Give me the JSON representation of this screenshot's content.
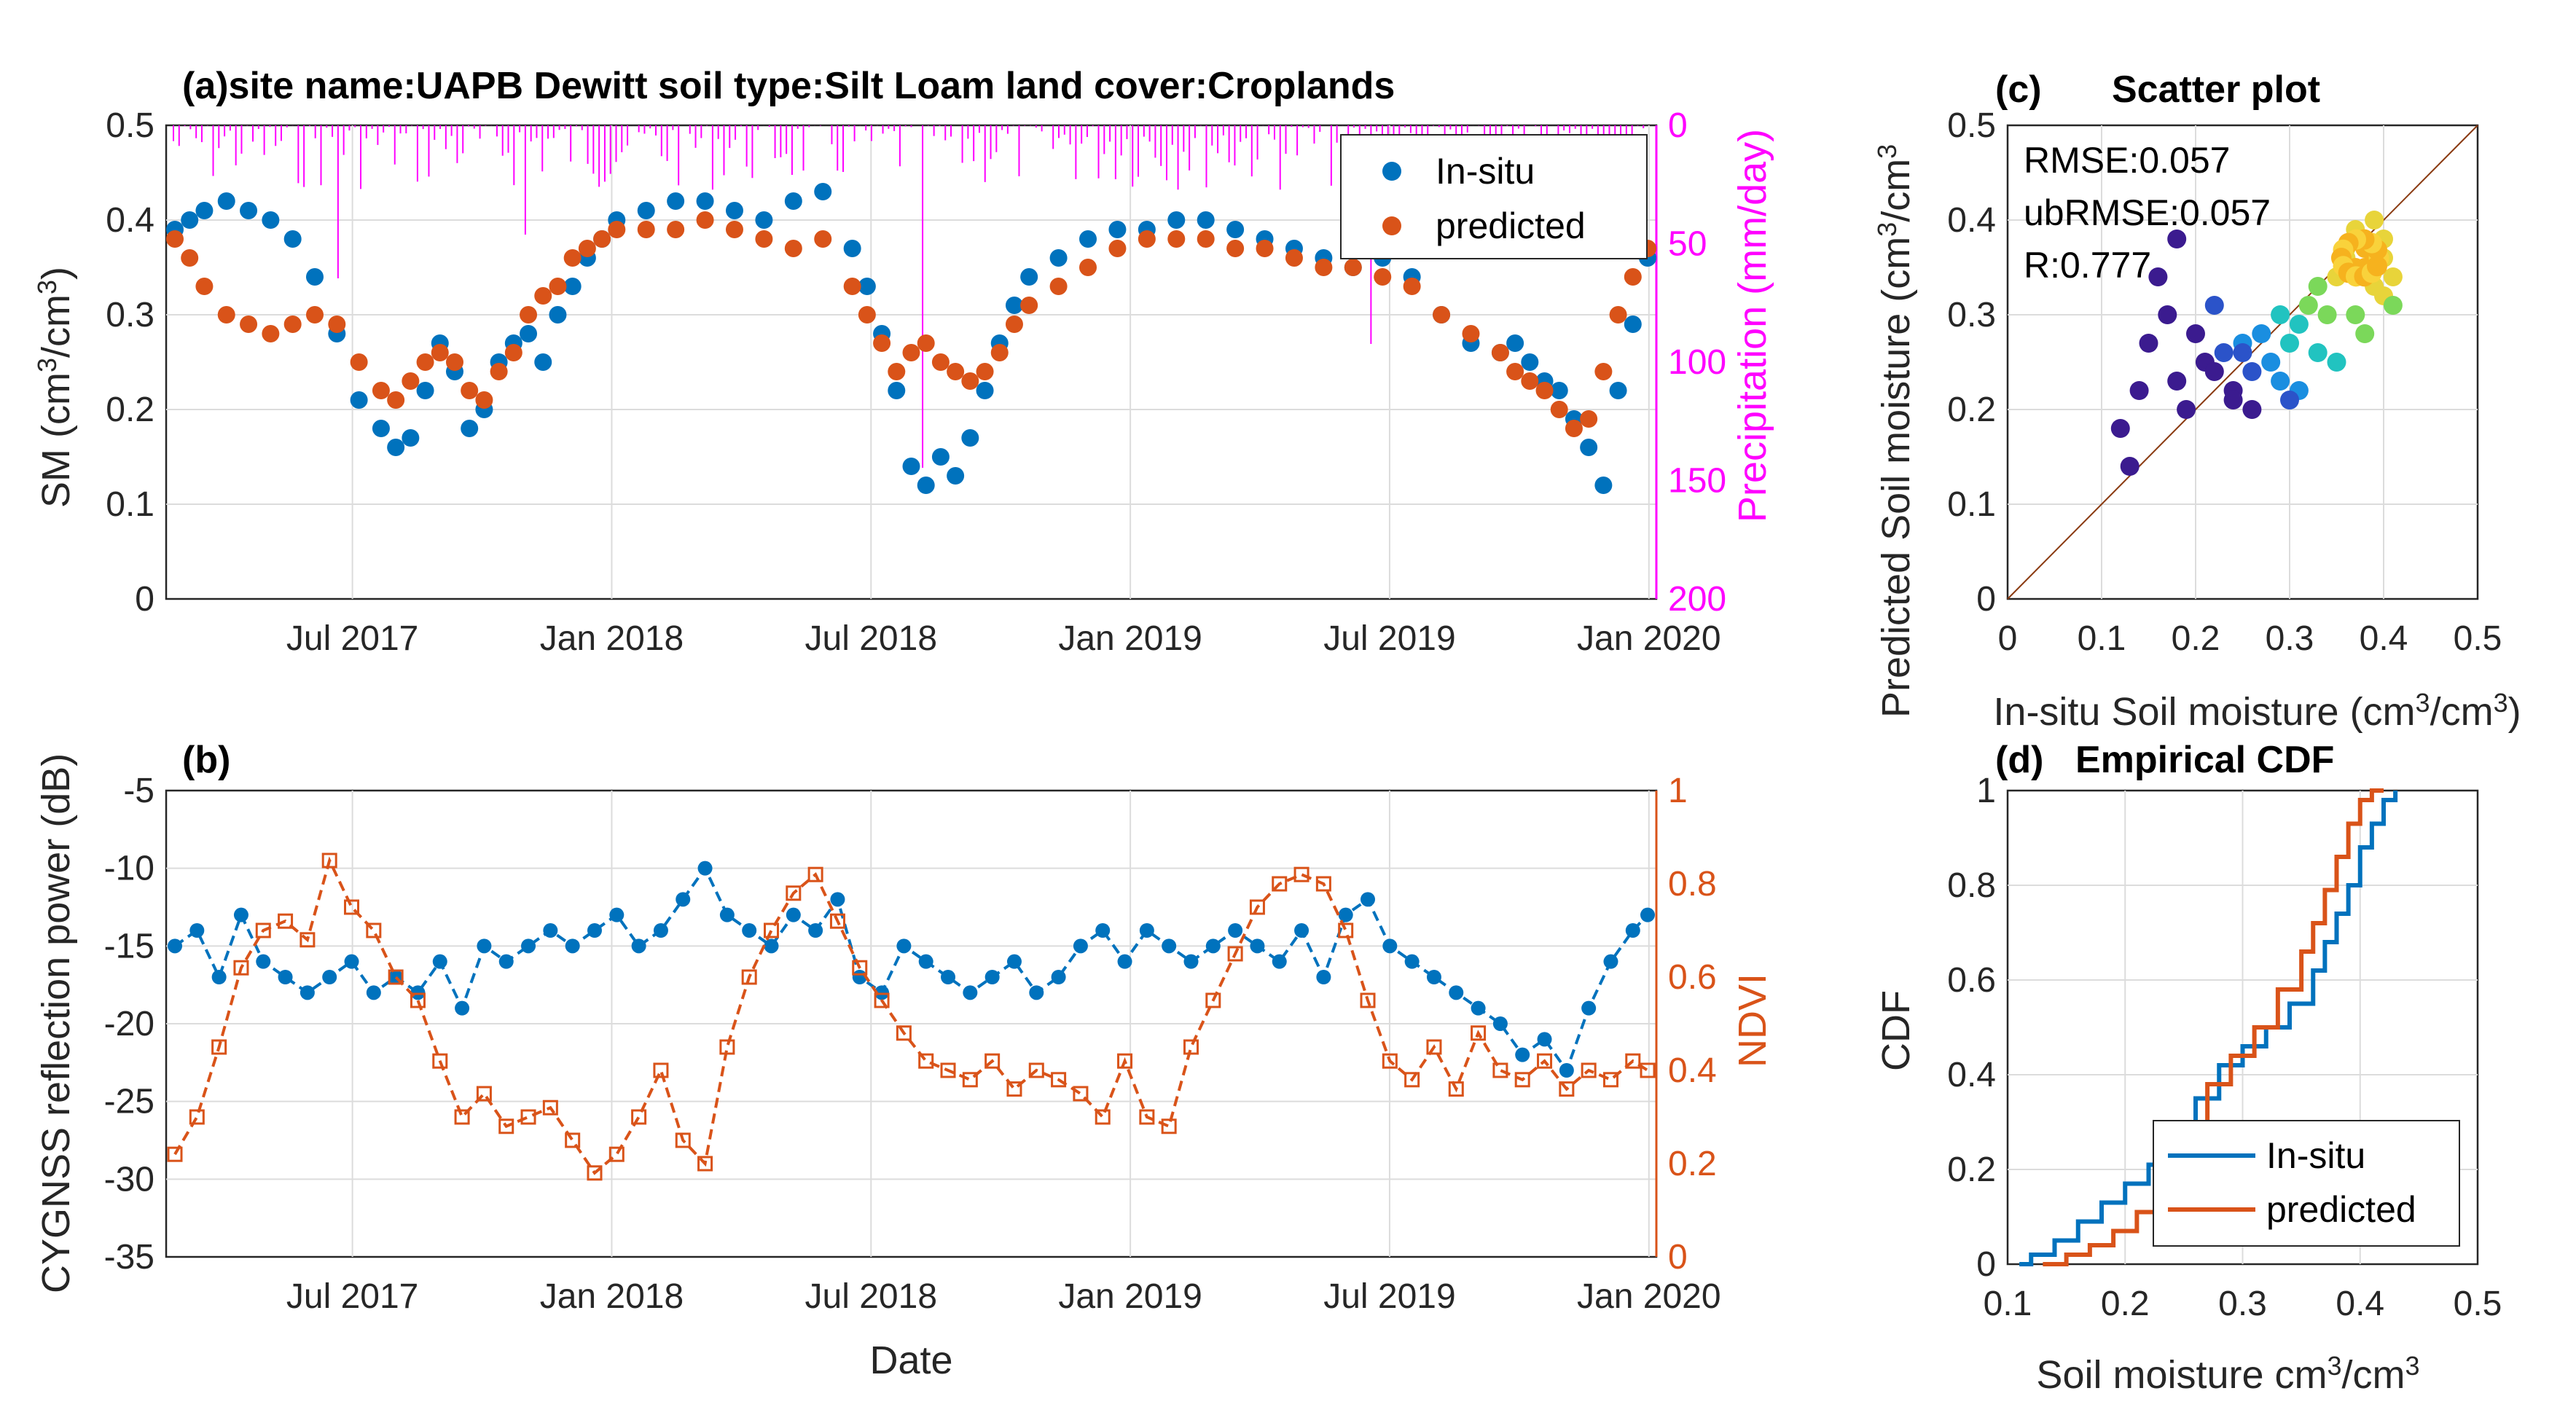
{
  "chart_data": [
    {
      "id": "a",
      "type": "scatter",
      "title": "(a)site name:UAPB Dewitt  soil type:Silt Loam  land cover:Croplands",
      "xlabel": "",
      "ylabel": "SM (cm3/cm3)",
      "ylabel_parts": [
        "SM (cm",
        "3",
        "/cm",
        "3",
        ")"
      ],
      "ylim": [
        0,
        0.5
      ],
      "yticks": [
        "0",
        "0.1",
        "0.2",
        "0.3",
        "0.4",
        "0.5"
      ],
      "y2label": "Precipitation (mm/day)",
      "y2lim": [
        0,
        200
      ],
      "y2_reversed": true,
      "y2ticks": [
        "0",
        "50",
        "100",
        "150",
        "200"
      ],
      "xticks": [
        "Jul 2017",
        "Jan 2018",
        "Jul 2018",
        "Jan 2019",
        "Jul 2019",
        "Jan 2020"
      ],
      "legend": [
        "In-situ",
        "predicted"
      ],
      "legend_position": "top-right",
      "colors": {
        "insitu": "#0072BD",
        "predicted": "#D95319",
        "precip": "#FF00FF"
      },
      "series": [
        {
          "name": "In-situ",
          "x": [
            0,
            10,
            20,
            35,
            50,
            65,
            80,
            95,
            110,
            125,
            140,
            150,
            160,
            170,
            180,
            190,
            200,
            210,
            220,
            230,
            240,
            250,
            260,
            270,
            280,
            290,
            300,
            320,
            340,
            360,
            380,
            400,
            420,
            440,
            460,
            470,
            480,
            490,
            500,
            510,
            520,
            530,
            540,
            550,
            560,
            570,
            580,
            600,
            620,
            640,
            660,
            680,
            700,
            720,
            740,
            760,
            780,
            800,
            820,
            840,
            860,
            880,
            900,
            910,
            920,
            930,
            940,
            950,
            960,
            970,
            980,
            990,
            1000
          ],
          "y": [
            0.39,
            0.4,
            0.41,
            0.42,
            0.41,
            0.4,
            0.38,
            0.34,
            0.28,
            0.21,
            0.18,
            0.16,
            0.17,
            0.22,
            0.27,
            0.24,
            0.18,
            0.2,
            0.25,
            0.27,
            0.28,
            0.25,
            0.3,
            0.33,
            0.36,
            0.38,
            0.4,
            0.41,
            0.42,
            0.42,
            0.41,
            0.4,
            0.42,
            0.43,
            0.37,
            0.33,
            0.28,
            0.22,
            0.14,
            0.12,
            0.15,
            0.13,
            0.17,
            0.22,
            0.27,
            0.31,
            0.34,
            0.36,
            0.38,
            0.39,
            0.39,
            0.4,
            0.4,
            0.39,
            0.38,
            0.37,
            0.36,
            0.35,
            0.36,
            0.34,
            0.3,
            0.27,
            0.26,
            0.27,
            0.25,
            0.23,
            0.22,
            0.19,
            0.16,
            0.12,
            0.22,
            0.29,
            0.36
          ]
        },
        {
          "name": "predicted",
          "x": [
            0,
            10,
            20,
            35,
            50,
            65,
            80,
            95,
            110,
            125,
            140,
            150,
            160,
            170,
            180,
            190,
            200,
            210,
            220,
            230,
            240,
            250,
            260,
            270,
            280,
            290,
            300,
            320,
            340,
            360,
            380,
            400,
            420,
            440,
            460,
            470,
            480,
            490,
            500,
            510,
            520,
            530,
            540,
            550,
            560,
            570,
            580,
            600,
            620,
            640,
            660,
            680,
            700,
            720,
            740,
            760,
            780,
            800,
            820,
            840,
            860,
            880,
            900,
            910,
            920,
            930,
            940,
            950,
            960,
            970,
            980,
            990,
            1000
          ],
          "y": [
            0.38,
            0.36,
            0.33,
            0.3,
            0.29,
            0.28,
            0.29,
            0.3,
            0.29,
            0.25,
            0.22,
            0.21,
            0.23,
            0.25,
            0.26,
            0.25,
            0.22,
            0.21,
            0.24,
            0.26,
            0.3,
            0.32,
            0.33,
            0.36,
            0.37,
            0.38,
            0.39,
            0.39,
            0.39,
            0.4,
            0.39,
            0.38,
            0.37,
            0.38,
            0.33,
            0.3,
            0.27,
            0.24,
            0.26,
            0.27,
            0.25,
            0.24,
            0.23,
            0.24,
            0.26,
            0.29,
            0.31,
            0.33,
            0.35,
            0.37,
            0.38,
            0.38,
            0.38,
            0.37,
            0.37,
            0.36,
            0.35,
            0.35,
            0.34,
            0.33,
            0.3,
            0.28,
            0.26,
            0.24,
            0.23,
            0.22,
            0.2,
            0.18,
            0.19,
            0.24,
            0.3,
            0.34,
            0.37
          ]
        }
      ]
    },
    {
      "id": "b",
      "type": "line",
      "title": "(b)",
      "xlabel": "Date",
      "ylabel": "CYGNSS reflection power (dB)",
      "ylim": [
        -35,
        -5
      ],
      "yticks": [
        "-35",
        "-30",
        "-25",
        "-20",
        "-15",
        "-10",
        "-5"
      ],
      "y2label": "NDVI",
      "y2lim": [
        0,
        1
      ],
      "y2ticks": [
        "0",
        "0.2",
        "0.4",
        "0.6",
        "0.8",
        "1"
      ],
      "xticks": [
        "Jul 2017",
        "Jan 2018",
        "Jul 2018",
        "Jan 2019",
        "Jul 2019",
        "Jan 2020"
      ],
      "series": [
        {
          "name": "CYGNSS reflection power",
          "x": [
            0,
            15,
            30,
            45,
            60,
            75,
            90,
            105,
            120,
            135,
            150,
            165,
            180,
            195,
            210,
            225,
            240,
            255,
            270,
            285,
            300,
            315,
            330,
            345,
            360,
            375,
            390,
            405,
            420,
            435,
            450,
            465,
            480,
            495,
            510,
            525,
            540,
            555,
            570,
            585,
            600,
            615,
            630,
            645,
            660,
            675,
            690,
            705,
            720,
            735,
            750,
            765,
            780,
            795,
            810,
            825,
            840,
            855,
            870,
            885,
            900,
            915,
            930,
            945,
            960,
            975,
            990,
            1000
          ],
          "y": [
            -15,
            -14,
            -17,
            -13,
            -16,
            -17,
            -18,
            -17,
            -16,
            -18,
            -17,
            -18,
            -16,
            -19,
            -15,
            -16,
            -15,
            -14,
            -15,
            -14,
            -13,
            -15,
            -14,
            -12,
            -10,
            -13,
            -14,
            -15,
            -13,
            -14,
            -12,
            -17,
            -18,
            -15,
            -16,
            -17,
            -18,
            -17,
            -16,
            -18,
            -17,
            -15,
            -14,
            -16,
            -14,
            -15,
            -16,
            -15,
            -14,
            -15,
            -16,
            -14,
            -17,
            -13,
            -12,
            -15,
            -16,
            -17,
            -18,
            -19,
            -20,
            -22,
            -21,
            -23,
            -19,
            -16,
            -14,
            -13
          ]
        },
        {
          "name": "NDVI",
          "x": [
            0,
            15,
            30,
            45,
            60,
            75,
            90,
            105,
            120,
            135,
            150,
            165,
            180,
            195,
            210,
            225,
            240,
            255,
            270,
            285,
            300,
            315,
            330,
            345,
            360,
            375,
            390,
            405,
            420,
            435,
            450,
            465,
            480,
            495,
            510,
            525,
            540,
            555,
            570,
            585,
            600,
            615,
            630,
            645,
            660,
            675,
            690,
            705,
            720,
            735,
            750,
            765,
            780,
            795,
            810,
            825,
            840,
            855,
            870,
            885,
            900,
            915,
            930,
            945,
            960,
            975,
            990,
            1000
          ],
          "y": [
            0.22,
            0.3,
            0.45,
            0.62,
            0.7,
            0.72,
            0.68,
            0.85,
            0.75,
            0.7,
            0.6,
            0.55,
            0.42,
            0.3,
            0.35,
            0.28,
            0.3,
            0.32,
            0.25,
            0.18,
            0.22,
            0.3,
            0.4,
            0.25,
            0.2,
            0.45,
            0.6,
            0.7,
            0.78,
            0.82,
            0.72,
            0.62,
            0.55,
            0.48,
            0.42,
            0.4,
            0.38,
            0.42,
            0.36,
            0.4,
            0.38,
            0.35,
            0.3,
            0.42,
            0.3,
            0.28,
            0.45,
            0.55,
            0.65,
            0.75,
            0.8,
            0.82,
            0.8,
            0.7,
            0.55,
            0.42,
            0.38,
            0.45,
            0.36,
            0.48,
            0.4,
            0.38,
            0.42,
            0.36,
            0.4,
            0.38,
            0.42,
            0.4
          ]
        }
      ]
    },
    {
      "id": "c",
      "type": "scatter",
      "title": "(c)",
      "subtitle": "Scatter plot",
      "xlabel": "In-situ Soil moisture (cm3/cm3)",
      "xlabel_parts": [
        "In-situ Soil moisture (cm",
        "3",
        "/cm",
        "3",
        ")"
      ],
      "ylabel": "Predicted Soil moisture (cm3/cm3)",
      "ylabel_parts": [
        "Predicted Soil moisture (cm",
        "3",
        "/cm",
        "3"
      ],
      "xlim": [
        0,
        0.5
      ],
      "ylim": [
        0,
        0.5
      ],
      "xticks": [
        "0",
        "0.1",
        "0.2",
        "0.3",
        "0.4",
        "0.5"
      ],
      "yticks": [
        "0",
        "0.1",
        "0.2",
        "0.3",
        "0.4",
        "0.5"
      ],
      "annotations": [
        "RMSE:0.057",
        "ubRMSE:0.057",
        "R:0.777"
      ],
      "x": [
        0.12,
        0.14,
        0.15,
        0.17,
        0.18,
        0.19,
        0.2,
        0.21,
        0.22,
        0.23,
        0.24,
        0.25,
        0.26,
        0.27,
        0.28,
        0.29,
        0.3,
        0.31,
        0.32,
        0.33,
        0.34,
        0.35,
        0.36,
        0.37,
        0.38,
        0.39,
        0.4,
        0.41,
        0.16,
        0.22,
        0.26,
        0.31,
        0.35,
        0.38,
        0.4,
        0.24,
        0.29,
        0.33,
        0.37,
        0.39,
        0.36,
        0.38,
        0.4,
        0.39,
        0.37,
        0.41,
        0.18,
        0.13,
        0.25,
        0.3
      ],
      "y": [
        0.18,
        0.22,
        0.27,
        0.3,
        0.23,
        0.2,
        0.28,
        0.25,
        0.24,
        0.26,
        0.22,
        0.27,
        0.24,
        0.28,
        0.25,
        0.3,
        0.27,
        0.29,
        0.31,
        0.33,
        0.3,
        0.34,
        0.36,
        0.35,
        0.37,
        0.36,
        0.38,
        0.34,
        0.34,
        0.31,
        0.2,
        0.22,
        0.25,
        0.28,
        0.32,
        0.21,
        0.23,
        0.26,
        0.3,
        0.4,
        0.37,
        0.35,
        0.36,
        0.33,
        0.39,
        0.31,
        0.38,
        0.14,
        0.26,
        0.21
      ],
      "density_colors": [
        "#3b1b8f",
        "#2b53c9",
        "#1a8ee0",
        "#21c3c0",
        "#7bd85a",
        "#e8d43a",
        "#f6b21e"
      ]
    },
    {
      "id": "d",
      "type": "line",
      "title": "(d)",
      "subtitle": "Empirical CDF",
      "xlabel": "Soil moisture cm3/cm3",
      "xlabel_parts": [
        "Soil moisture cm",
        "3",
        "/cm",
        "3"
      ],
      "ylabel": "CDF",
      "xlim": [
        0.1,
        0.5
      ],
      "ylim": [
        0,
        1
      ],
      "xticks": [
        "0.1",
        "0.2",
        "0.3",
        "0.4",
        "0.5"
      ],
      "yticks": [
        "0",
        "0.2",
        "0.4",
        "0.6",
        "0.8",
        "1"
      ],
      "legend": [
        "In-situ",
        "predicted"
      ],
      "legend_position": "bottom-right",
      "series": [
        {
          "name": "In-situ",
          "x": [
            0.11,
            0.12,
            0.14,
            0.16,
            0.18,
            0.2,
            0.22,
            0.24,
            0.26,
            0.28,
            0.3,
            0.32,
            0.34,
            0.36,
            0.37,
            0.38,
            0.39,
            0.4,
            0.41,
            0.42,
            0.43
          ],
          "y": [
            0.0,
            0.02,
            0.05,
            0.09,
            0.13,
            0.17,
            0.21,
            0.26,
            0.35,
            0.42,
            0.46,
            0.5,
            0.55,
            0.62,
            0.68,
            0.74,
            0.8,
            0.88,
            0.93,
            0.98,
            1.0
          ]
        },
        {
          "name": "predicted",
          "x": [
            0.13,
            0.15,
            0.17,
            0.19,
            0.21,
            0.23,
            0.25,
            0.27,
            0.29,
            0.31,
            0.33,
            0.35,
            0.36,
            0.37,
            0.38,
            0.39,
            0.4,
            0.41,
            0.42
          ],
          "y": [
            0.0,
            0.02,
            0.04,
            0.07,
            0.11,
            0.19,
            0.28,
            0.38,
            0.44,
            0.5,
            0.58,
            0.66,
            0.72,
            0.79,
            0.86,
            0.93,
            0.98,
            1.0,
            1.0
          ]
        }
      ]
    }
  ]
}
